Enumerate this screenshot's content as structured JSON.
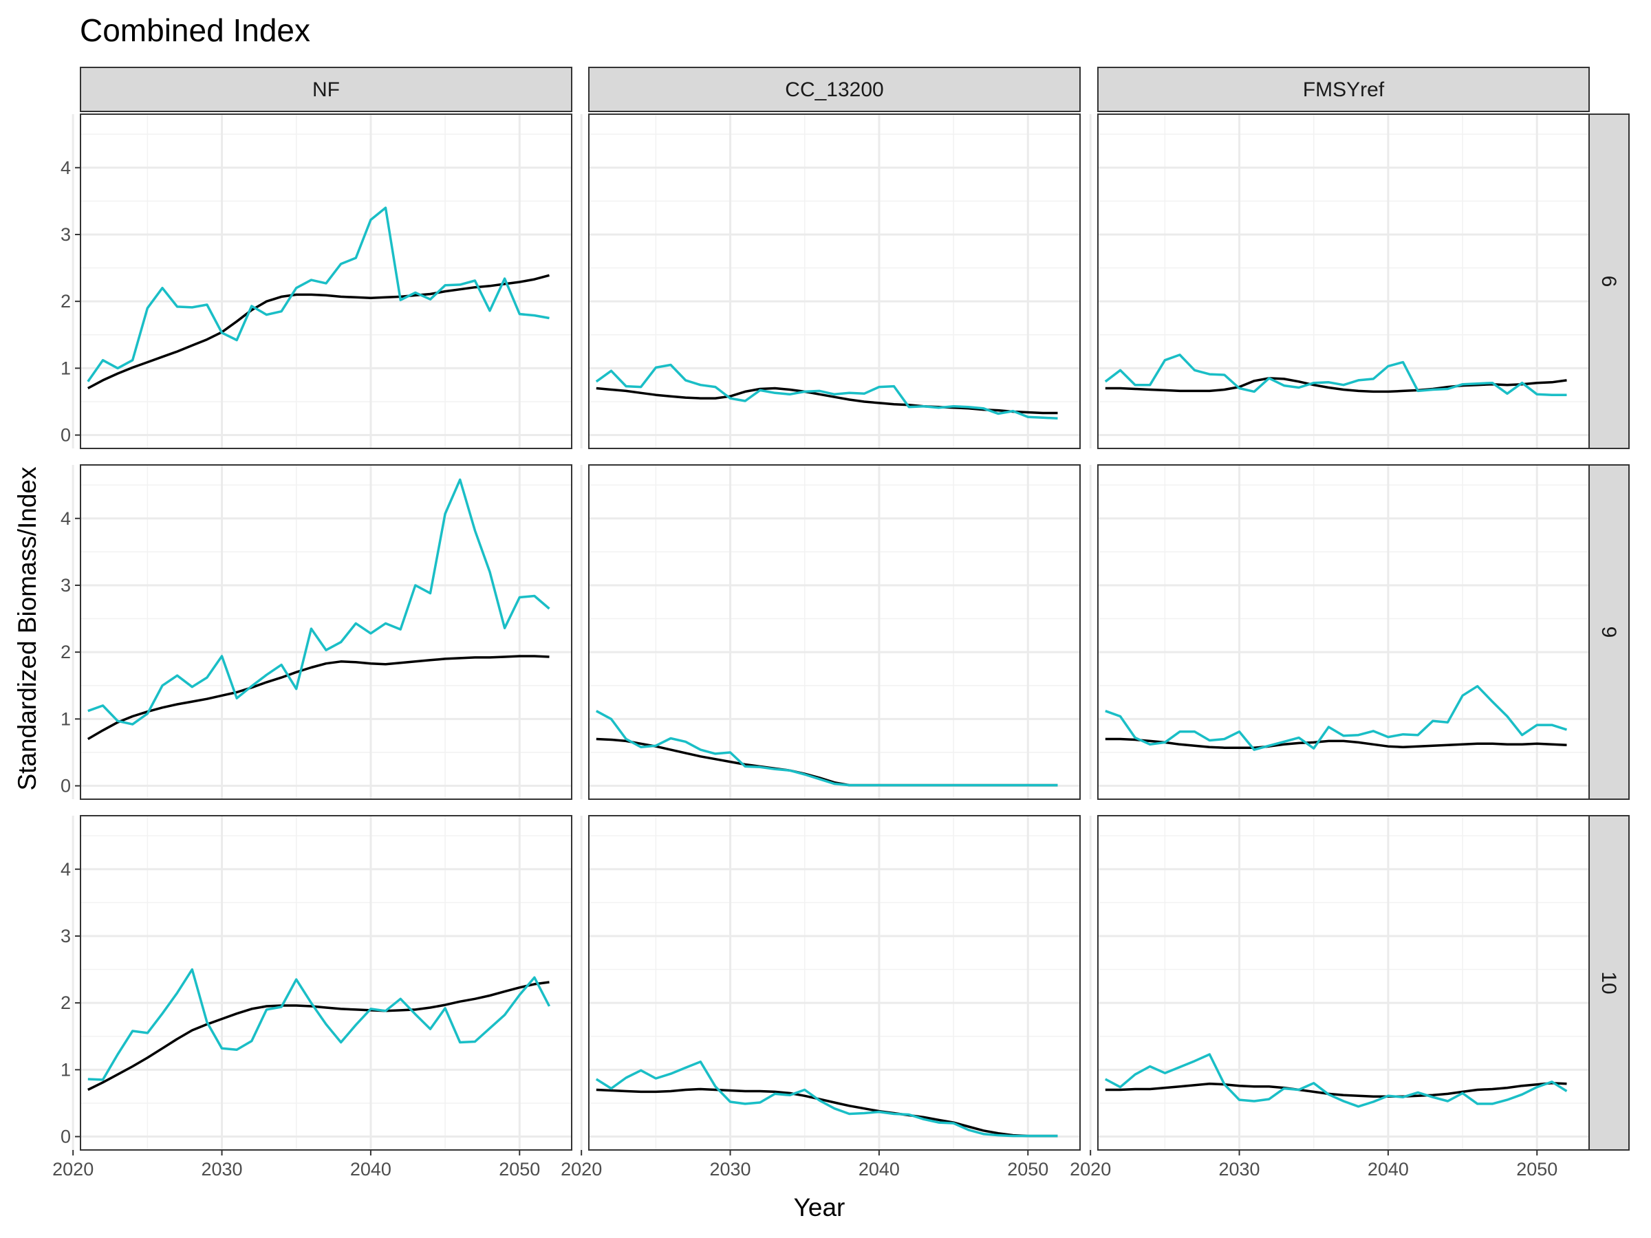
{
  "chart_data": {
    "type": "line",
    "title": "Combined Index",
    "xlabel": "Year",
    "ylabel": "Standardized Biomass/Index",
    "xlim": [
      2020.5,
      2053.5
    ],
    "ylim": [
      -0.2,
      4.8
    ],
    "x_ticks": [
      "2020",
      "2030",
      "2040",
      "2050"
    ],
    "y_ticks": [
      "0",
      "1",
      "2",
      "3",
      "4"
    ],
    "grid": true,
    "col_facets": [
      "NF",
      "CC_13200",
      "FMSYref"
    ],
    "row_facets": [
      "6",
      "9",
      "10"
    ],
    "x": [
      2021,
      2022,
      2023,
      2024,
      2025,
      2026,
      2027,
      2028,
      2029,
      2030,
      2031,
      2032,
      2033,
      2034,
      2035,
      2036,
      2037,
      2038,
      2039,
      2040,
      2041,
      2042,
      2043,
      2044,
      2045,
      2046,
      2047,
      2048,
      2049,
      2050,
      2051,
      2052
    ],
    "series_colors": {
      "index": "#1abec6",
      "biomass": "#000000"
    },
    "panels": [
      {
        "row": "6",
        "col": "NF",
        "index": [
          0.8,
          1.12,
          1.0,
          1.12,
          1.9,
          2.2,
          1.92,
          1.91,
          1.95,
          1.53,
          1.42,
          1.93,
          1.8,
          1.85,
          2.2,
          2.32,
          2.27,
          2.56,
          2.65,
          3.22,
          3.4,
          2.02,
          2.13,
          2.03,
          2.24,
          2.25,
          2.31,
          1.86,
          2.34,
          1.81,
          1.79,
          1.75
        ],
        "biomass": [
          0.7,
          0.82,
          0.92,
          1.01,
          1.09,
          1.17,
          1.25,
          1.34,
          1.43,
          1.54,
          1.7,
          1.87,
          2.0,
          2.07,
          2.1,
          2.1,
          2.09,
          2.07,
          2.06,
          2.05,
          2.06,
          2.07,
          2.09,
          2.11,
          2.15,
          2.18,
          2.21,
          2.23,
          2.26,
          2.29,
          2.33,
          2.39
        ]
      },
      {
        "row": "6",
        "col": "CC_13200",
        "index": [
          0.8,
          0.96,
          0.73,
          0.72,
          1.01,
          1.05,
          0.82,
          0.75,
          0.72,
          0.55,
          0.51,
          0.67,
          0.63,
          0.61,
          0.65,
          0.66,
          0.61,
          0.63,
          0.62,
          0.72,
          0.73,
          0.42,
          0.43,
          0.41,
          0.43,
          0.42,
          0.4,
          0.32,
          0.36,
          0.27,
          0.26,
          0.25
        ],
        "biomass": [
          0.7,
          0.68,
          0.66,
          0.63,
          0.6,
          0.58,
          0.56,
          0.55,
          0.55,
          0.58,
          0.65,
          0.69,
          0.7,
          0.68,
          0.65,
          0.61,
          0.57,
          0.53,
          0.5,
          0.48,
          0.46,
          0.45,
          0.43,
          0.42,
          0.41,
          0.4,
          0.38,
          0.37,
          0.35,
          0.34,
          0.33,
          0.33
        ]
      },
      {
        "row": "6",
        "col": "FMSYref",
        "index": [
          0.8,
          0.97,
          0.75,
          0.75,
          1.12,
          1.2,
          0.97,
          0.91,
          0.9,
          0.7,
          0.65,
          0.85,
          0.74,
          0.71,
          0.78,
          0.79,
          0.75,
          0.82,
          0.84,
          1.03,
          1.09,
          0.66,
          0.68,
          0.69,
          0.76,
          0.77,
          0.78,
          0.62,
          0.78,
          0.61,
          0.6,
          0.6
        ],
        "biomass": [
          0.7,
          0.7,
          0.69,
          0.68,
          0.67,
          0.66,
          0.66,
          0.66,
          0.68,
          0.72,
          0.81,
          0.85,
          0.84,
          0.8,
          0.75,
          0.71,
          0.68,
          0.66,
          0.65,
          0.65,
          0.66,
          0.67,
          0.69,
          0.72,
          0.74,
          0.75,
          0.76,
          0.75,
          0.76,
          0.78,
          0.79,
          0.82
        ]
      },
      {
        "row": "9",
        "col": "NF",
        "index": [
          1.12,
          1.2,
          0.97,
          0.92,
          1.08,
          1.5,
          1.65,
          1.48,
          1.62,
          1.94,
          1.31,
          1.49,
          1.66,
          1.81,
          1.45,
          2.35,
          2.03,
          2.15,
          2.43,
          2.28,
          2.43,
          2.34,
          3.0,
          2.88,
          4.07,
          4.58,
          3.82,
          3.2,
          2.36,
          2.82,
          2.84,
          2.65
        ],
        "biomass": [
          0.7,
          0.83,
          0.95,
          1.04,
          1.11,
          1.17,
          1.22,
          1.26,
          1.3,
          1.35,
          1.4,
          1.47,
          1.55,
          1.62,
          1.7,
          1.77,
          1.83,
          1.86,
          1.85,
          1.83,
          1.82,
          1.84,
          1.86,
          1.88,
          1.9,
          1.91,
          1.92,
          1.92,
          1.93,
          1.94,
          1.94,
          1.93
        ]
      },
      {
        "row": "9",
        "col": "CC_13200",
        "index": [
          1.12,
          1.0,
          0.7,
          0.58,
          0.6,
          0.71,
          0.66,
          0.54,
          0.48,
          0.5,
          0.29,
          0.28,
          0.25,
          0.23,
          0.17,
          0.1,
          0.03,
          0.01,
          0.01,
          0.01,
          0.01,
          0.01,
          0.01,
          0.01,
          0.01,
          0.01,
          0.01,
          0.01,
          0.01,
          0.01,
          0.01,
          0.01
        ],
        "biomass": [
          0.7,
          0.69,
          0.67,
          0.63,
          0.59,
          0.54,
          0.49,
          0.44,
          0.4,
          0.36,
          0.32,
          0.29,
          0.26,
          0.23,
          0.18,
          0.12,
          0.05,
          0.01,
          0.01,
          0.01,
          0.01,
          0.01,
          0.01,
          0.01,
          0.01,
          0.01,
          0.01,
          0.01,
          0.01,
          0.01,
          0.01,
          0.01
        ]
      },
      {
        "row": "9",
        "col": "FMSYref",
        "index": [
          1.12,
          1.04,
          0.72,
          0.62,
          0.65,
          0.81,
          0.81,
          0.68,
          0.7,
          0.81,
          0.54,
          0.6,
          0.66,
          0.72,
          0.56,
          0.88,
          0.75,
          0.76,
          0.82,
          0.73,
          0.77,
          0.76,
          0.97,
          0.95,
          1.35,
          1.49,
          1.26,
          1.04,
          0.76,
          0.91,
          0.91,
          0.84
        ],
        "biomass": [
          0.7,
          0.7,
          0.69,
          0.67,
          0.65,
          0.62,
          0.6,
          0.58,
          0.57,
          0.57,
          0.57,
          0.59,
          0.62,
          0.64,
          0.65,
          0.67,
          0.67,
          0.65,
          0.62,
          0.59,
          0.58,
          0.59,
          0.6,
          0.61,
          0.62,
          0.63,
          0.63,
          0.62,
          0.62,
          0.63,
          0.62,
          0.61
        ]
      },
      {
        "row": "10",
        "col": "NF",
        "index": [
          0.86,
          0.85,
          1.23,
          1.58,
          1.55,
          1.84,
          2.15,
          2.5,
          1.71,
          1.32,
          1.3,
          1.43,
          1.9,
          1.94,
          2.35,
          2.0,
          1.68,
          1.41,
          1.67,
          1.91,
          1.88,
          2.06,
          1.83,
          1.61,
          1.92,
          1.41,
          1.42,
          1.62,
          1.82,
          2.12,
          2.38,
          1.95
        ],
        "biomass": [
          0.7,
          0.81,
          0.93,
          1.05,
          1.18,
          1.32,
          1.46,
          1.59,
          1.68,
          1.76,
          1.84,
          1.91,
          1.95,
          1.96,
          1.96,
          1.95,
          1.93,
          1.91,
          1.9,
          1.89,
          1.88,
          1.89,
          1.9,
          1.93,
          1.97,
          2.02,
          2.06,
          2.11,
          2.17,
          2.23,
          2.28,
          2.31
        ]
      },
      {
        "row": "10",
        "col": "CC_13200",
        "index": [
          0.86,
          0.72,
          0.88,
          0.99,
          0.87,
          0.94,
          1.03,
          1.12,
          0.75,
          0.52,
          0.49,
          0.51,
          0.64,
          0.62,
          0.7,
          0.54,
          0.42,
          0.34,
          0.35,
          0.37,
          0.34,
          0.33,
          0.26,
          0.21,
          0.2,
          0.1,
          0.04,
          0.02,
          0.01,
          0.01,
          0.01,
          0.01
        ],
        "biomass": [
          0.7,
          0.69,
          0.68,
          0.67,
          0.67,
          0.68,
          0.7,
          0.71,
          0.7,
          0.69,
          0.68,
          0.68,
          0.67,
          0.65,
          0.61,
          0.56,
          0.51,
          0.46,
          0.42,
          0.38,
          0.35,
          0.32,
          0.29,
          0.25,
          0.21,
          0.15,
          0.09,
          0.05,
          0.02,
          0.01,
          0.01,
          0.01
        ]
      },
      {
        "row": "10",
        "col": "FMSYref",
        "index": [
          0.86,
          0.74,
          0.93,
          1.05,
          0.95,
          1.04,
          1.13,
          1.23,
          0.78,
          0.55,
          0.53,
          0.56,
          0.72,
          0.7,
          0.8,
          0.63,
          0.53,
          0.45,
          0.52,
          0.61,
          0.59,
          0.66,
          0.59,
          0.53,
          0.65,
          0.49,
          0.49,
          0.55,
          0.63,
          0.74,
          0.82,
          0.68
        ],
        "biomass": [
          0.7,
          0.7,
          0.71,
          0.71,
          0.73,
          0.75,
          0.77,
          0.79,
          0.78,
          0.76,
          0.75,
          0.75,
          0.73,
          0.7,
          0.67,
          0.64,
          0.62,
          0.61,
          0.6,
          0.6,
          0.6,
          0.61,
          0.62,
          0.64,
          0.67,
          0.7,
          0.71,
          0.73,
          0.76,
          0.78,
          0.8,
          0.79
        ]
      }
    ]
  }
}
